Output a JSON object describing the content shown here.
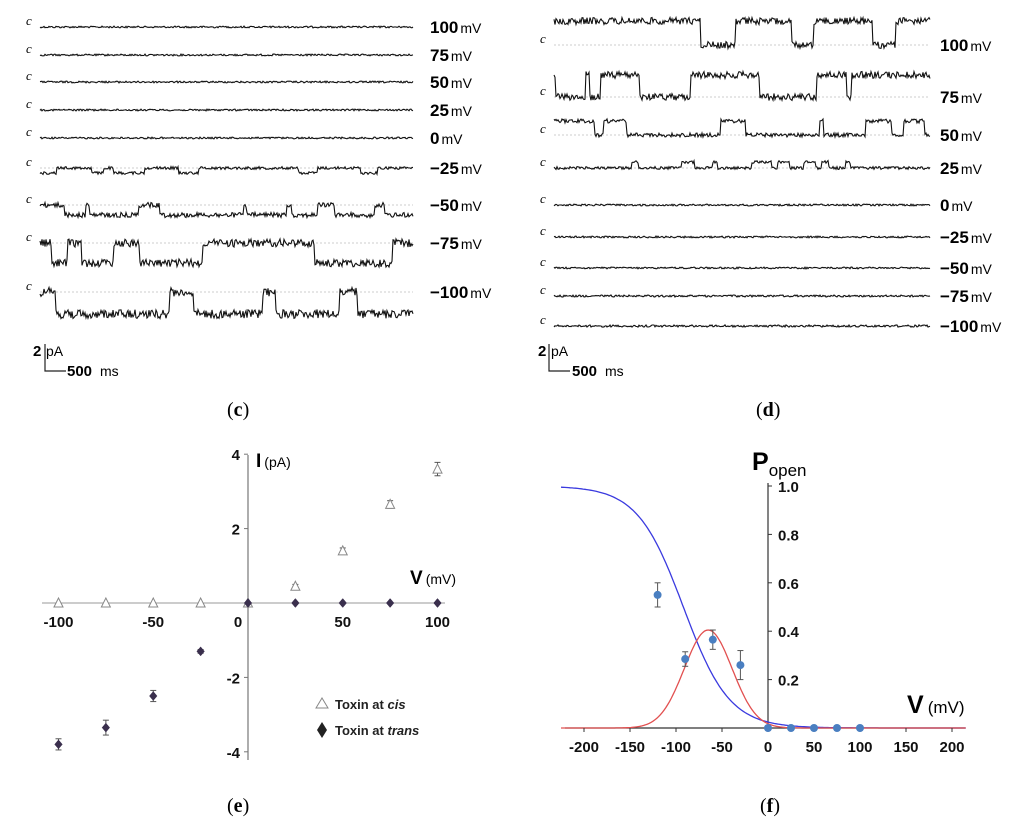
{
  "panel_labels": {
    "c": "c",
    "d": "d",
    "e": "e",
    "f": "f"
  },
  "traces": {
    "closed_marker": "c",
    "c": {
      "voltages": [
        "100",
        "75",
        "50",
        "25",
        "0",
        "−25",
        "−50",
        "−75",
        "−100"
      ],
      "unit": "mV",
      "scale_current_value": "2",
      "scale_current_unit": "pA",
      "scale_time_value": "500",
      "scale_time_unit": "ms"
    },
    "d": {
      "voltages": [
        "100",
        "75",
        "50",
        "25",
        "0",
        "−25",
        "−50",
        "−75",
        "−100"
      ],
      "unit": "mV",
      "scale_current_value": "2",
      "scale_current_unit": "pA",
      "scale_time_value": "500",
      "scale_time_unit": "ms"
    }
  },
  "chart_data": [
    {
      "panel": "e",
      "type": "scatter",
      "ylabel_main": "I",
      "ylabel_unit": "(pA)",
      "xlabel_main": "V",
      "xlabel_unit": "(mV)",
      "xlim": [
        -100,
        100
      ],
      "ylim": [
        -4,
        4
      ],
      "x_ticks": [
        "-100",
        "-50",
        "0",
        "50",
        "100"
      ],
      "y_ticks": [
        "4",
        "2",
        "-2",
        "-4"
      ],
      "legend_position": "bottom-right",
      "series": [
        {
          "name_prefix": "Toxin at ",
          "name_italic": "cis",
          "marker": "open-triangle",
          "color": "#888888",
          "x": [
            -100,
            -75,
            -50,
            -25,
            0,
            25,
            50,
            75,
            100
          ],
          "y": [
            0,
            0,
            0,
            0,
            0,
            0.45,
            1.4,
            2.65,
            3.6
          ],
          "err": [
            0,
            0,
            0,
            0,
            0,
            0.05,
            0.08,
            0.1,
            0.18
          ]
        },
        {
          "name_prefix": "Toxin at ",
          "name_italic": "trans",
          "marker": "filled-diamond",
          "color": "#3a2f4d",
          "x": [
            -100,
            -75,
            -50,
            -25,
            0,
            25,
            50,
            75,
            100
          ],
          "y": [
            -3.8,
            -3.35,
            -2.5,
            -1.3,
            0,
            0,
            0,
            0,
            0
          ],
          "err": [
            0.15,
            0.2,
            0.15,
            0.05,
            0,
            0,
            0,
            0,
            0
          ]
        }
      ]
    },
    {
      "panel": "f",
      "type": "line",
      "ylabel_main": "P",
      "ylabel_sub": "open",
      "xlabel_main": "V",
      "xlabel_unit": "(mV)",
      "xlim": [
        -225,
        215
      ],
      "ylim": [
        0,
        1.0
      ],
      "x_ticks": [
        "-200",
        "-150",
        "-100",
        "-50",
        "0",
        "50",
        "100",
        "150",
        "200"
      ],
      "y_ticks": [
        "1.0",
        "0.8",
        "0.6",
        "0.4",
        "0.2"
      ],
      "points": {
        "color": "#4a7fc1",
        "x": [
          -120,
          -90,
          -60,
          -30,
          0,
          25,
          50,
          75,
          100
        ],
        "y": [
          0.55,
          0.285,
          0.365,
          0.26,
          0,
          0,
          0,
          0,
          0
        ],
        "err": [
          0.05,
          0.03,
          0.04,
          0.06,
          0,
          0,
          0,
          0,
          0
        ]
      },
      "curves": [
        {
          "color": "#3a3adf",
          "kind": "boltzmann",
          "v_half": -92,
          "slope": 25
        },
        {
          "color": "#e25050",
          "kind": "gaussian",
          "center": -65,
          "amplitude": 0.405,
          "sigma": 26
        }
      ]
    }
  ]
}
